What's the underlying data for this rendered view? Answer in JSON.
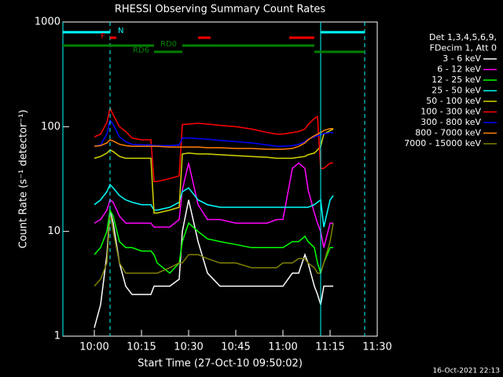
{
  "chart_data": {
    "type": "line",
    "title": "RHESSI Observing Summary Count Rates",
    "x_label": "Start Time (27-Oct-10 09:50:02)",
    "y_label": "Count Rate (s⁻¹ detector⁻¹)",
    "timestamp": "16-Oct-2021 22:13",
    "legend_header": [
      "Det 1,3,4,5,6,9,",
      "FDecim 1, Att 0"
    ],
    "log_y": true,
    "xlim": [
      "09:50",
      "11:30"
    ],
    "xticks": [
      "10:00",
      "10:15",
      "10:30",
      "10:45",
      "11:00",
      "11:15",
      "11:30"
    ],
    "ylim": [
      1,
      1000
    ],
    "yticks": [
      1,
      10,
      100,
      1000
    ],
    "x": [
      "10:00",
      "10:02",
      "10:04",
      "10:05",
      "10:06",
      "10:08",
      "10:10",
      "10:12",
      "10:15",
      "10:18",
      "10:19",
      "10:20",
      "10:24",
      "10:27",
      "10:28",
      "10:30",
      "10:33",
      "10:36",
      "10:40",
      "10:45",
      "10:50",
      "10:55",
      "10:58",
      "11:00",
      "11:03",
      "11:05",
      "11:07",
      "11:08",
      "11:10",
      "11:11",
      "11:12",
      "11:13",
      "11:15",
      "11:16"
    ],
    "series": [
      {
        "name": "3 - 6 keV",
        "color": "#000000",
        "values": [
          1.2,
          2,
          6,
          16,
          12,
          5,
          3,
          2.5,
          2.5,
          2.5,
          3,
          3,
          3,
          3.5,
          10,
          20,
          8,
          4,
          3,
          3,
          3,
          3,
          3,
          3,
          4,
          4,
          6,
          5,
          3,
          2.5,
          2,
          3,
          3,
          3
        ]
      },
      {
        "name": "6 - 12 keV",
        "color": "#ff00ff",
        "values": [
          12,
          13,
          16,
          20,
          19,
          14,
          12,
          12,
          12,
          12,
          11,
          11,
          11,
          13,
          25,
          45,
          18,
          13,
          13,
          12,
          12,
          12,
          13,
          13,
          40,
          45,
          40,
          25,
          15,
          12,
          10,
          7,
          12,
          12
        ]
      },
      {
        "name": "12 - 25 keV",
        "color": "#00ff00",
        "values": [
          6,
          7,
          10,
          16,
          14,
          8,
          7,
          7,
          6.5,
          6.5,
          6,
          5,
          4,
          5,
          8,
          12,
          10,
          8.5,
          8,
          7.5,
          7,
          7,
          7,
          7,
          8,
          8,
          9,
          8,
          7,
          5,
          4,
          5,
          7,
          7
        ]
      },
      {
        "name": "25 - 50 keV",
        "color": "#00ffff",
        "values": [
          18,
          20,
          24,
          28,
          26,
          22,
          20,
          19,
          18,
          18,
          16,
          16,
          17,
          19,
          24,
          26,
          20,
          18,
          17,
          17,
          17,
          17,
          17,
          17,
          17,
          17,
          17,
          17,
          18,
          19,
          20,
          11,
          20,
          22
        ]
      },
      {
        "name": "50 - 100 keV",
        "color": "#d4d400",
        "values": [
          50,
          52,
          56,
          60,
          58,
          52,
          50,
          50,
          50,
          50,
          15,
          15,
          16,
          17,
          55,
          56,
          55,
          55,
          54,
          53,
          52,
          51,
          50,
          50,
          50,
          51,
          52,
          54,
          56,
          60,
          65,
          85,
          92,
          95
        ]
      },
      {
        "name": "100 - 300 keV",
        "color": "#ff0000",
        "values": [
          80,
          85,
          110,
          150,
          130,
          100,
          90,
          78,
          75,
          75,
          30,
          30,
          32,
          34,
          105,
          106,
          108,
          106,
          103,
          100,
          95,
          88,
          85,
          85,
          88,
          90,
          95,
          105,
          120,
          125,
          40,
          40,
          45,
          45
        ]
      },
      {
        "name": "300 - 800 keV",
        "color": "#0000ff",
        "values": [
          65,
          67,
          85,
          115,
          105,
          80,
          72,
          68,
          67,
          67,
          66,
          66,
          66,
          67,
          78,
          78,
          77,
          76,
          74,
          72,
          70,
          67,
          65,
          65,
          66,
          68,
          72,
          76,
          80,
          82,
          84,
          86,
          88,
          88
        ]
      },
      {
        "name": "800 - 7000 keV",
        "color": "#ff8000",
        "values": [
          65,
          66,
          70,
          75,
          73,
          68,
          66,
          65,
          65,
          65,
          65,
          65,
          64,
          64,
          64,
          64,
          64,
          63,
          63,
          62,
          62,
          61,
          61,
          61,
          62,
          65,
          70,
          75,
          82,
          85,
          88,
          92,
          96,
          96
        ]
      },
      {
        "name": "7000 - 15000 keV",
        "color": "#808000",
        "values": [
          3,
          3.5,
          5,
          15,
          10,
          5,
          4,
          4,
          4,
          4,
          4,
          4,
          4.5,
          5,
          5,
          6,
          6,
          5.5,
          5,
          5,
          4.5,
          4.5,
          4.5,
          5,
          5,
          5.5,
          5.5,
          5,
          4.5,
          4,
          4,
          5,
          8,
          12
        ]
      }
    ],
    "vlines": [
      {
        "x": "09:50",
        "style": "solid",
        "color": "#00ffff"
      },
      {
        "x": "10:05",
        "style": "dashed",
        "color": "#00ffff"
      },
      {
        "x": "11:12",
        "style": "solid",
        "color": "#00ffff"
      },
      {
        "x": "11:26",
        "style": "dashed",
        "color": "#00ffff"
      }
    ],
    "flag_bars": [
      {
        "label": "N",
        "color": "#00ffff",
        "segments": [
          [
            "09:50",
            "10:05"
          ],
          [
            "11:12",
            "11:26"
          ]
        ]
      },
      {
        "label": "F",
        "color": "#ff0000",
        "segments": [
          [
            "10:05",
            "10:07"
          ],
          [
            "10:33",
            "10:37"
          ],
          [
            "11:02",
            "11:10"
          ]
        ]
      },
      {
        "label": "RD0",
        "color": "#008000",
        "segments": [
          [
            "09:50",
            "10:19"
          ],
          [
            "10:28",
            "11:10"
          ]
        ]
      },
      {
        "label": "RD6",
        "color": "#008000",
        "segments": [
          [
            "10:19",
            "10:28"
          ],
          [
            "11:10",
            "11:26"
          ]
        ]
      }
    ]
  }
}
